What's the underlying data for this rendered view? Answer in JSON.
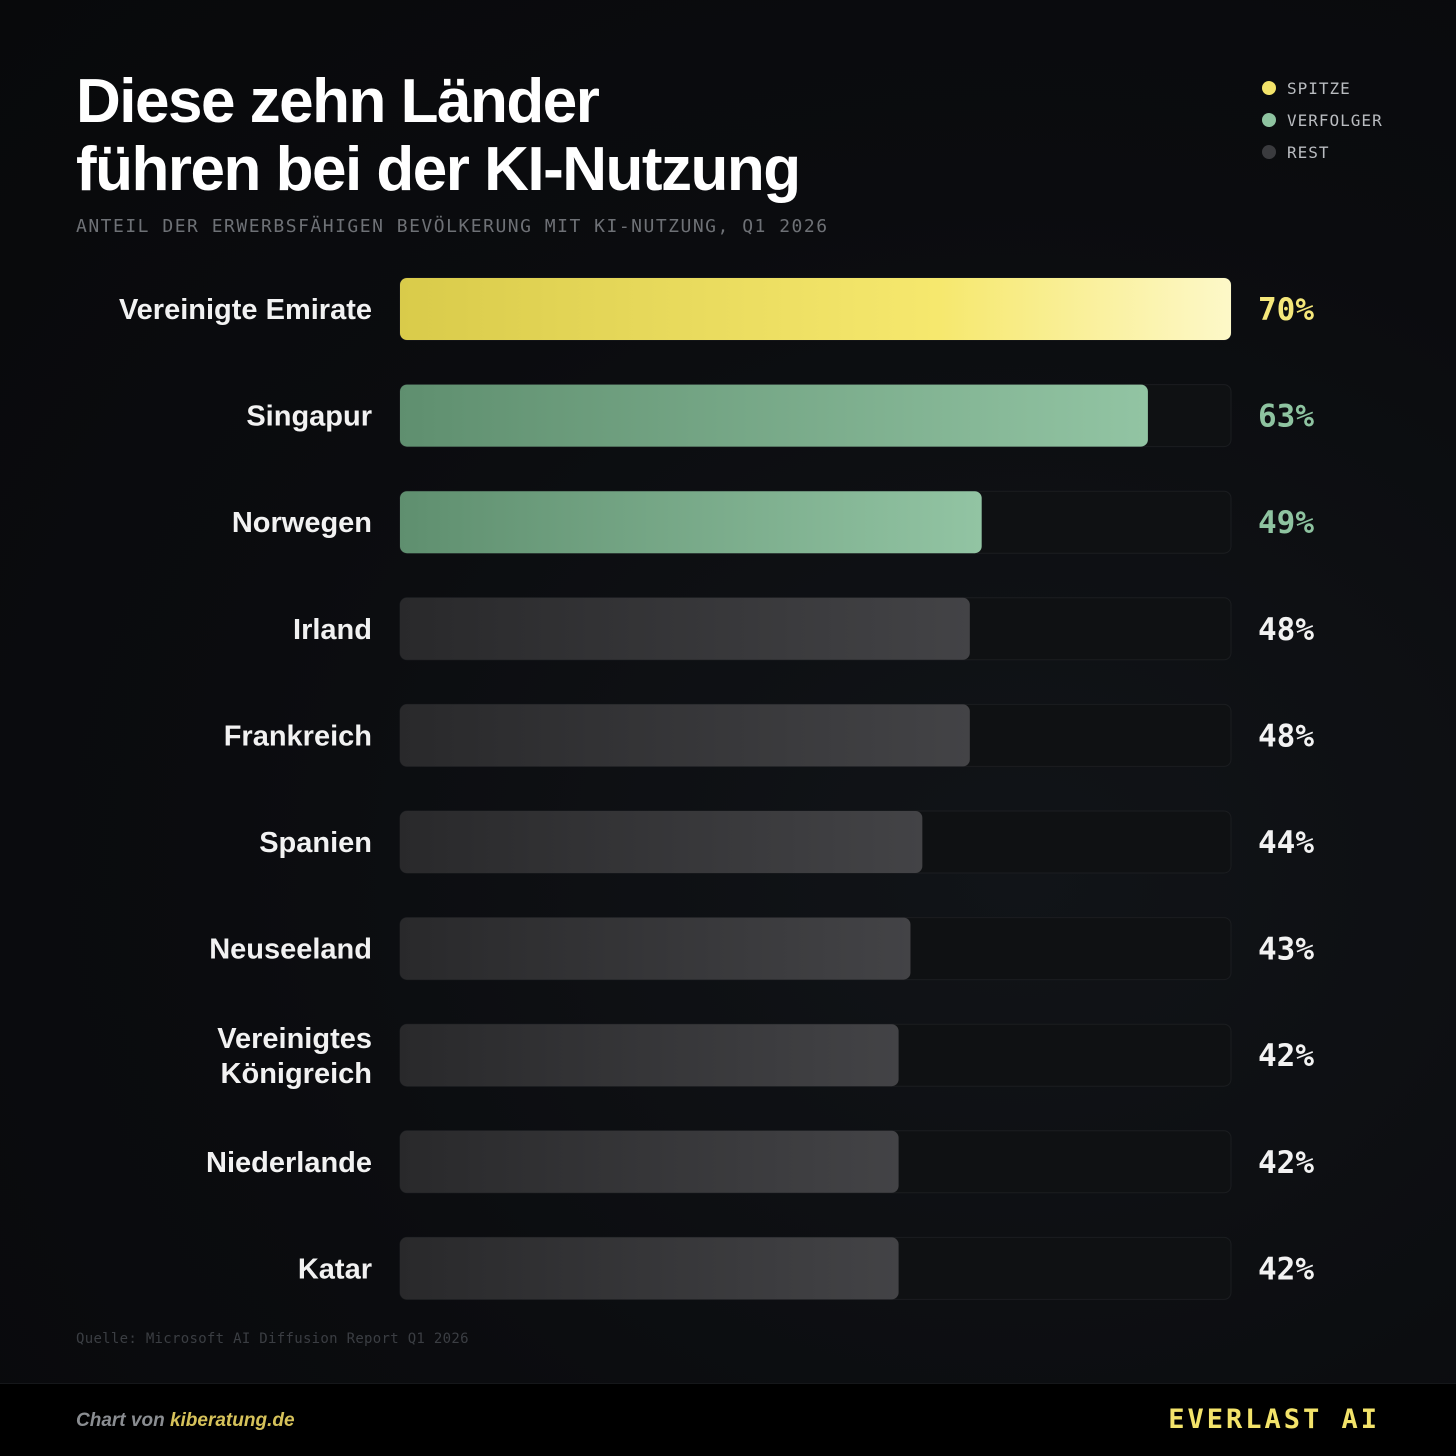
{
  "header": {
    "title_line1": "Diese zehn Länder",
    "title_line2": "führen bei der KI-Nutzung",
    "subtitle": "ANTEIL DER ERWERBSFÄHIGEN BEVÖLKERUNG MIT KI-NUTZUNG, Q1 2026"
  },
  "legend": [
    {
      "label": "SPITZE",
      "color": "#f3e36a"
    },
    {
      "label": "VERFOLGER",
      "color": "#8ec3a0"
    },
    {
      "label": "REST",
      "color": "#3a3b3e"
    }
  ],
  "chart_data": {
    "type": "bar",
    "orientation": "horizontal",
    "categories": [
      "Vereinigte Emirate",
      "Singapur",
      "Norwegen",
      "Irland",
      "Frankreich",
      "Spanien",
      "Neuseeland",
      "Vereinigtes Königreich",
      "Niederlande",
      "Katar"
    ],
    "values": [
      70,
      63,
      49,
      48,
      48,
      44,
      43,
      42,
      42,
      42
    ],
    "value_labels": [
      "70%",
      "63%",
      "49%",
      "48%",
      "48%",
      "44%",
      "43%",
      "42%",
      "42%",
      "42%"
    ],
    "groups": [
      "SPITZE",
      "VERFOLGER",
      "VERFOLGER",
      "REST",
      "REST",
      "REST",
      "REST",
      "REST",
      "REST",
      "REST"
    ],
    "xlim": [
      0,
      70
    ],
    "grid": false,
    "legend_position": "top-right"
  },
  "source": "Quelle: Microsoft AI Diffusion Report Q1 2026",
  "footer": {
    "credit_prefix": "Chart von ",
    "credit_link": "kiberatung.de",
    "brand": "EVERLAST AI"
  }
}
